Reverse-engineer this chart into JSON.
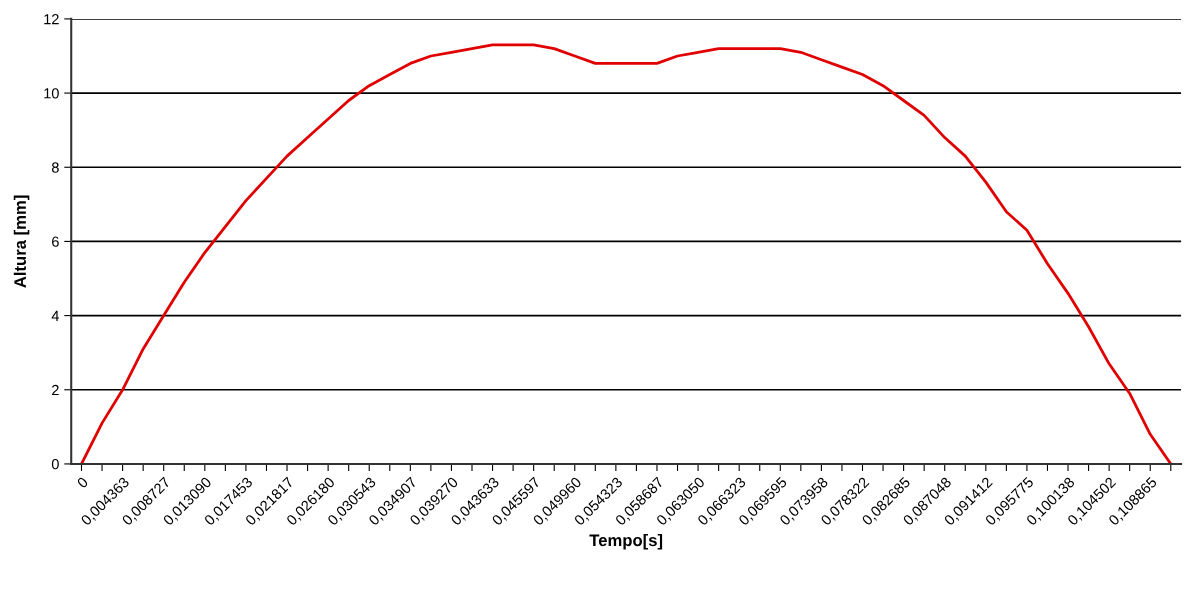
{
  "chart_data": {
    "type": "line",
    "xlabel": "Tempo[s]",
    "ylabel": "Altura [mm]",
    "categories": [
      "0",
      null,
      "0,004363",
      null,
      "0,008727",
      null,
      "0,013090",
      null,
      "0,017453",
      null,
      "0,021817",
      null,
      "0,026180",
      null,
      "0,030543",
      null,
      "0,034907",
      null,
      "0,039270",
      null,
      "0,043633",
      null,
      "0,045597",
      null,
      "0,049960",
      null,
      "0,054323",
      null,
      "0,058687",
      null,
      "0,063050",
      null,
      "0,066323",
      null,
      "0,069595",
      null,
      "0,073958",
      null,
      "0,078322",
      null,
      "0,082685",
      null,
      "0,087048",
      null,
      "0,091412",
      null,
      "0,095775",
      null,
      "0,100138",
      null,
      "0,104502",
      null,
      "0,108865",
      null
    ],
    "series": [
      {
        "color": "#e00000",
        "values": [
          0,
          1.1,
          2.0,
          3.1,
          4.0,
          4.9,
          5.7,
          6.4,
          7.1,
          7.7,
          8.3,
          8.8,
          9.3,
          9.8,
          10.2,
          10.5,
          10.8,
          11.0,
          11.1,
          11.2,
          11.3,
          11.3,
          11.3,
          11.2,
          11.0,
          10.8,
          10.8,
          10.8,
          10.8,
          11.0,
          11.1,
          11.2,
          11.2,
          11.2,
          11.2,
          11.1,
          10.9,
          10.7,
          10.5,
          10.2,
          9.8,
          9.4,
          8.8,
          8.3,
          7.6,
          6.8,
          6.3,
          5.4,
          4.6,
          3.7,
          2.7,
          1.9,
          0.8,
          0
        ]
      }
    ],
    "ylim": [
      0,
      12
    ],
    "yticks": [
      0,
      2,
      4,
      6,
      8,
      10,
      12
    ],
    "grid": "y",
    "marker": "none",
    "line_style": "solid"
  }
}
